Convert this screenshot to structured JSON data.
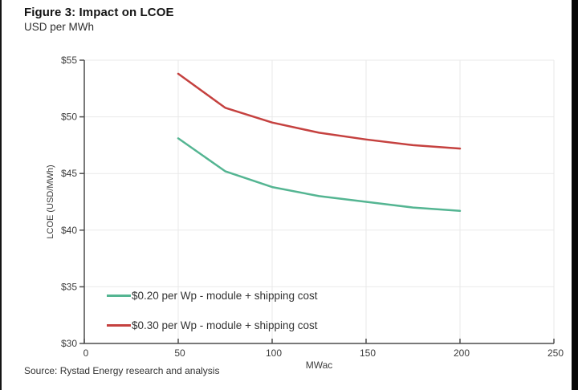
{
  "page": {
    "title": "Figure 3: Impact on LCOE",
    "subtitle": "USD per MWh",
    "source": "Source: Rystad Energy research and analysis"
  },
  "chart_data": {
    "type": "line",
    "title": "Figure 3: Impact on LCOE",
    "subtitle": "USD per MWh",
    "xlabel": "MWac",
    "ylabel": "LCOE (USD/MWh)",
    "xlim": [
      0,
      250
    ],
    "ylim": [
      30,
      55
    ],
    "x_ticks": [
      0,
      50,
      100,
      150,
      200,
      250
    ],
    "y_ticks": [
      30,
      35,
      40,
      45,
      50,
      55
    ],
    "y_tick_prefix": "$",
    "grid": true,
    "legend_position": "inside-bottom-left",
    "x": [
      50,
      75,
      100,
      125,
      150,
      175,
      200
    ],
    "series": [
      {
        "name": "$0.20 per Wp - module + shipping cost",
        "color": "#54b592",
        "values": [
          48.1,
          45.2,
          43.8,
          43.0,
          42.5,
          42.0,
          41.7
        ]
      },
      {
        "name": "$0.30 per Wp - module + shipping cost",
        "color": "#c5413f",
        "values": [
          53.8,
          50.8,
          49.5,
          48.6,
          48.0,
          47.5,
          47.2
        ]
      }
    ],
    "colors": {
      "grid": "#e9e9e9",
      "axis": "#4d4d4d",
      "tick_label": "#3d3d3d"
    }
  }
}
